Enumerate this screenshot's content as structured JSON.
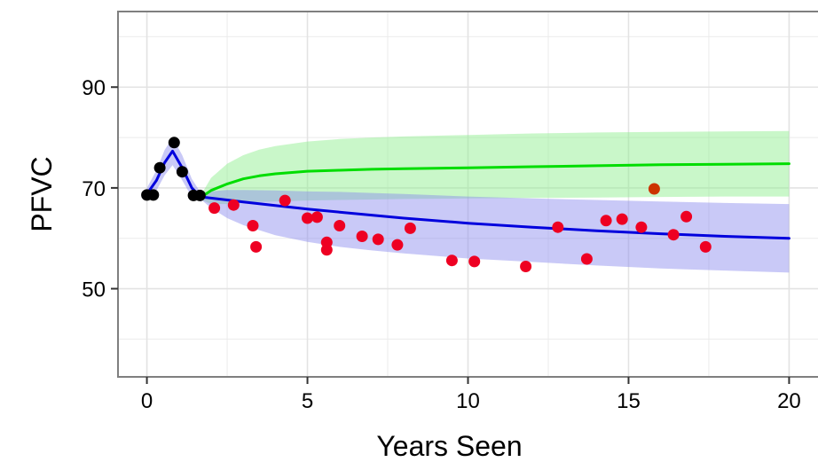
{
  "chart_data": {
    "type": "line",
    "title": "",
    "xlabel": "Years Seen",
    "ylabel": "PFVC",
    "xlim": [
      -0.9,
      20.9
    ],
    "ylim": [
      32.5,
      105
    ],
    "x_ticks": [
      0,
      5,
      10,
      15,
      20
    ],
    "x_tick_labels": [
      "0",
      "5",
      "10",
      "15",
      "20"
    ],
    "y_ticks": [
      50,
      70,
      90
    ],
    "y_tick_labels": [
      "50",
      "70",
      "90"
    ],
    "grid": true,
    "legend": "none",
    "colors": {
      "black_points": "#000000",
      "red_points": "#ee0022",
      "orange_points": "#cc3300",
      "green_line": "#00dd00",
      "green_band": "#88ee88",
      "blue_line": "#0000dd",
      "blue_band": "#8888ee",
      "panel_border": "#7f7f7f",
      "grid": "#ebebeb"
    },
    "series": [
      {
        "kind": "points",
        "color_key": "black_points",
        "x": [
          0.0,
          0.2,
          0.4,
          0.85,
          1.1,
          1.45,
          1.65
        ],
        "y": [
          68.6,
          68.6,
          74.0,
          79.0,
          73.2,
          68.5,
          68.5
        ]
      },
      {
        "kind": "points",
        "color_key": "red_points",
        "x": [
          2.1,
          2.7,
          3.3,
          3.4,
          4.3,
          5.0,
          5.3,
          5.6,
          5.6,
          6.0,
          6.7,
          7.2,
          7.8,
          8.2,
          9.5,
          10.2,
          11.8,
          12.8,
          13.7,
          14.3,
          14.8,
          15.4,
          16.4,
          16.8,
          17.4
        ],
        "y": [
          66.0,
          66.6,
          62.5,
          58.3,
          67.5,
          64.0,
          64.2,
          59.2,
          57.7,
          62.5,
          60.4,
          59.8,
          58.7,
          62.0,
          55.6,
          55.4,
          54.4,
          62.2,
          55.9,
          63.5,
          63.8,
          62.2,
          60.7,
          64.3,
          58.3
        ]
      },
      {
        "kind": "points",
        "color_key": "orange_points",
        "x": [
          15.8
        ],
        "y": [
          69.8
        ]
      },
      {
        "kind": "line",
        "color_key": "blue_line",
        "x": [
          0.0,
          0.3,
          0.55,
          0.8,
          1.1,
          1.4,
          1.7
        ],
        "y": [
          68.8,
          71.5,
          75.0,
          77.3,
          74.0,
          70.0,
          68.0
        ]
      },
      {
        "kind": "band",
        "color_key": "blue_band",
        "opacity": 0.45,
        "x": [
          0.0,
          0.3,
          0.55,
          0.8,
          1.1,
          1.4,
          1.7
        ],
        "upper": [
          70.0,
          73.5,
          77.5,
          80.0,
          76.5,
          71.8,
          68.8
        ],
        "lower": [
          67.6,
          69.5,
          72.5,
          74.5,
          71.5,
          68.2,
          67.2
        ]
      },
      {
        "kind": "line",
        "color_key": "green_line",
        "x": [
          1.7,
          2.0,
          2.5,
          3.0,
          3.5,
          4.0,
          5.0,
          6.0,
          7.0,
          8.0,
          10.0,
          12.0,
          14.0,
          16.0,
          18.0,
          20.0
        ],
        "y": [
          68.2,
          69.5,
          70.8,
          71.8,
          72.4,
          72.8,
          73.3,
          73.5,
          73.7,
          73.8,
          74.0,
          74.2,
          74.4,
          74.6,
          74.7,
          74.8
        ]
      },
      {
        "kind": "band",
        "color_key": "green_band",
        "opacity": 0.45,
        "x": [
          1.7,
          2.0,
          2.5,
          3.0,
          3.5,
          4.0,
          5.0,
          6.0,
          7.0,
          8.0,
          10.0,
          12.0,
          14.0,
          16.0,
          18.0,
          20.0
        ],
        "upper": [
          68.8,
          72.0,
          74.8,
          76.5,
          77.6,
          78.3,
          79.2,
          79.7,
          80.0,
          80.2,
          80.5,
          80.8,
          81.0,
          81.1,
          81.2,
          81.3
        ],
        "lower": [
          67.6,
          66.8,
          66.8,
          67.0,
          67.2,
          67.3,
          67.5,
          67.6,
          67.7,
          67.8,
          67.9,
          68.0,
          68.1,
          68.2,
          68.3,
          68.3
        ]
      },
      {
        "kind": "line",
        "color_key": "blue_line",
        "x": [
          1.7,
          2.5,
          3.0,
          4.0,
          5.0,
          6.0,
          7.0,
          8.0,
          10.0,
          12.0,
          14.0,
          16.0,
          18.0,
          20.0
        ],
        "y": [
          68.2,
          67.6,
          67.2,
          66.5,
          65.8,
          65.2,
          64.6,
          64.0,
          63.0,
          62.2,
          61.5,
          60.9,
          60.4,
          60.0
        ]
      },
      {
        "kind": "band",
        "color_key": "blue_band",
        "opacity": 0.45,
        "x": [
          1.7,
          2.0,
          2.5,
          3.0,
          4.0,
          5.0,
          6.0,
          7.0,
          8.0,
          10.0,
          12.0,
          14.0,
          16.0,
          18.0,
          20.0
        ],
        "upper": [
          68.8,
          69.3,
          69.6,
          69.6,
          69.5,
          69.3,
          69.2,
          69.0,
          68.8,
          68.3,
          67.9,
          67.6,
          67.3,
          67.0,
          66.8
        ],
        "lower": [
          67.6,
          66.0,
          64.0,
          62.6,
          60.6,
          59.3,
          58.3,
          57.6,
          57.0,
          56.0,
          55.3,
          54.6,
          54.0,
          53.6,
          53.2
        ]
      }
    ]
  }
}
